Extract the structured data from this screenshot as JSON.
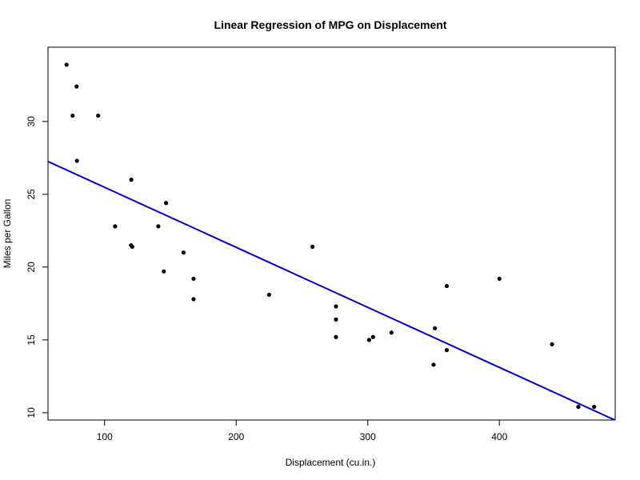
{
  "chart_data": {
    "type": "scatter",
    "title": "Linear Regression of MPG on Displacement",
    "xlabel": "Displacement (cu.in.)",
    "ylabel": "Miles per Gallon",
    "xlim": [
      57,
      488
    ],
    "ylim": [
      9.5,
      35.1
    ],
    "x_ticks": [
      100,
      200,
      300,
      400
    ],
    "y_ticks": [
      10,
      15,
      20,
      25,
      30
    ],
    "grid": false,
    "legend": "none",
    "points": [
      {
        "x": 71.1,
        "y": 33.9
      },
      {
        "x": 75.7,
        "y": 30.4
      },
      {
        "x": 78.7,
        "y": 32.4
      },
      {
        "x": 79.0,
        "y": 27.3
      },
      {
        "x": 95.1,
        "y": 30.4
      },
      {
        "x": 108.0,
        "y": 22.8
      },
      {
        "x": 120.1,
        "y": 21.5
      },
      {
        "x": 120.3,
        "y": 26.0
      },
      {
        "x": 121.0,
        "y": 21.4
      },
      {
        "x": 140.8,
        "y": 22.8
      },
      {
        "x": 145.0,
        "y": 19.7
      },
      {
        "x": 146.7,
        "y": 24.4
      },
      {
        "x": 160.0,
        "y": 21.0
      },
      {
        "x": 167.6,
        "y": 19.2
      },
      {
        "x": 167.6,
        "y": 17.8
      },
      {
        "x": 225.0,
        "y": 18.1
      },
      {
        "x": 258.0,
        "y": 21.4
      },
      {
        "x": 275.8,
        "y": 16.4
      },
      {
        "x": 275.8,
        "y": 17.3
      },
      {
        "x": 275.8,
        "y": 15.2
      },
      {
        "x": 301.0,
        "y": 15.0
      },
      {
        "x": 304.0,
        "y": 15.2
      },
      {
        "x": 318.0,
        "y": 15.5
      },
      {
        "x": 350.0,
        "y": 13.3
      },
      {
        "x": 351.0,
        "y": 15.8
      },
      {
        "x": 360.0,
        "y": 18.7
      },
      {
        "x": 360.0,
        "y": 14.3
      },
      {
        "x": 400.0,
        "y": 19.2
      },
      {
        "x": 440.0,
        "y": 14.7
      },
      {
        "x": 460.0,
        "y": 10.4
      },
      {
        "x": 472.0,
        "y": 10.4
      }
    ],
    "regression_line": {
      "intercept": 29.6,
      "slope": -0.04122
    },
    "colors": {
      "points": "#000000",
      "line": "#0000cc",
      "frame": "#000000"
    }
  }
}
